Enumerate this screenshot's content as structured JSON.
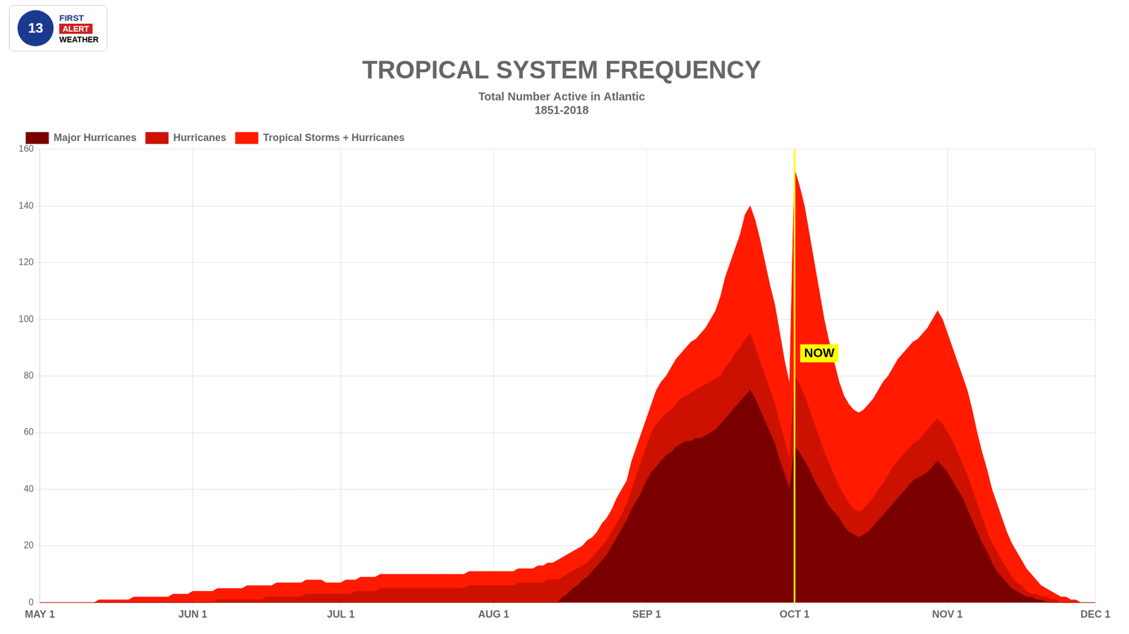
{
  "chart_data": {
    "type": "area",
    "title": "TROPICAL SYSTEM FREQUENCY",
    "subtitle": [
      "Total Number Active in Atlantic",
      "1851-2018"
    ],
    "x": [
      0,
      1,
      2,
      3,
      4,
      5,
      6,
      7,
      8,
      9,
      10,
      11,
      12,
      13,
      14,
      15,
      16,
      17,
      18,
      19,
      20,
      21,
      22,
      23,
      24,
      25,
      26,
      27,
      28,
      29,
      30,
      31,
      32,
      33,
      34,
      35,
      36,
      37,
      38,
      39,
      40,
      41,
      42,
      43,
      44,
      45,
      46,
      47,
      48,
      49,
      50,
      51,
      52,
      53,
      54,
      55,
      56,
      57,
      58,
      59,
      60,
      61,
      62,
      63,
      64,
      65,
      66,
      67,
      68,
      69,
      70,
      71,
      72,
      73,
      74,
      75,
      76,
      77,
      78,
      79,
      80,
      81,
      82,
      83,
      84,
      85,
      86,
      87,
      88,
      89,
      90,
      91,
      92,
      93,
      94,
      95,
      96,
      97,
      98,
      99,
      100,
      101,
      102,
      103,
      104,
      105,
      106,
      107,
      108,
      109,
      110,
      111,
      112,
      113,
      114,
      115,
      116,
      117,
      118,
      119,
      120,
      121,
      122,
      123,
      124,
      125,
      126,
      127,
      128,
      129,
      130,
      131,
      132,
      133,
      134,
      135,
      136,
      137,
      138,
      139,
      140,
      141,
      142,
      143,
      144,
      145,
      146,
      147,
      148,
      149,
      150,
      151,
      152,
      153,
      154,
      155,
      156,
      157,
      158,
      159,
      160,
      161,
      162,
      163,
      164,
      165,
      166,
      167,
      168,
      169,
      170,
      171,
      172,
      173,
      174,
      175,
      176,
      177,
      178,
      179,
      180,
      181,
      182,
      183,
      184,
      185,
      186,
      187,
      188,
      189,
      190,
      191,
      192,
      193,
      194,
      195,
      196,
      197,
      198,
      199,
      200,
      201,
      202,
      203,
      204,
      205,
      206,
      207,
      208,
      209,
      210,
      211,
      212,
      213,
      214
    ],
    "xlim": [
      0,
      214
    ],
    "xticks": [
      {
        "value": 0,
        "label": "MAY 1"
      },
      {
        "value": 31,
        "label": "JUN 1"
      },
      {
        "value": 61,
        "label": "JUL 1"
      },
      {
        "value": 92,
        "label": "AUG 1"
      },
      {
        "value": 123,
        "label": "SEP 1"
      },
      {
        "value": 153,
        "label": "OCT 1"
      },
      {
        "value": 184,
        "label": "NOV 1"
      },
      {
        "value": 214,
        "label": "DEC 1"
      }
    ],
    "ylim": [
      0,
      160
    ],
    "yticks": [
      0,
      20,
      40,
      60,
      80,
      100,
      120,
      140,
      160
    ],
    "series": [
      {
        "name": "Tropical Storms + Hurricanes",
        "color": "#ff1a00",
        "values": [
          0,
          0,
          0,
          0,
          0,
          0,
          0,
          0,
          0,
          0,
          0,
          0,
          1,
          1,
          1,
          1,
          1,
          1,
          1,
          2,
          2,
          2,
          2,
          2,
          2,
          2,
          2,
          3,
          3,
          3,
          3,
          4,
          4,
          4,
          4,
          4,
          5,
          5,
          5,
          5,
          5,
          5,
          6,
          6,
          6,
          6,
          6,
          6,
          7,
          7,
          7,
          7,
          7,
          7,
          8,
          8,
          8,
          8,
          7,
          7,
          7,
          7,
          8,
          8,
          8,
          9,
          9,
          9,
          9,
          10,
          10,
          10,
          10,
          10,
          10,
          10,
          10,
          10,
          10,
          10,
          10,
          10,
          10,
          10,
          10,
          10,
          10,
          11,
          11,
          11,
          11,
          11,
          11,
          11,
          11,
          11,
          11,
          12,
          12,
          12,
          12,
          13,
          13,
          14,
          14,
          15,
          16,
          17,
          18,
          19,
          20,
          22,
          23,
          25,
          28,
          30,
          33,
          37,
          40,
          43,
          50,
          55,
          60,
          65,
          70,
          75,
          78,
          80,
          83,
          86,
          88,
          90,
          92,
          93,
          95,
          97,
          100,
          103,
          108,
          115,
          120,
          125,
          130,
          137,
          140,
          135,
          128,
          120,
          112,
          105,
          95,
          85,
          77,
          153,
          147,
          140,
          130,
          120,
          110,
          100,
          92,
          85,
          78,
          73,
          70,
          68,
          67,
          68,
          70,
          72,
          75,
          78,
          80,
          83,
          86,
          88,
          90,
          92,
          93,
          95,
          97,
          100,
          103,
          100,
          95,
          90,
          85,
          80,
          75,
          68,
          60,
          53,
          47,
          40,
          35,
          30,
          25,
          21,
          18,
          15,
          12,
          10,
          8,
          6,
          5,
          4,
          3,
          2,
          2,
          1,
          1,
          0,
          0,
          0,
          0
        ]
      },
      {
        "name": "Hurricanes",
        "color": "#cc1100",
        "values": [
          0,
          0,
          0,
          0,
          0,
          0,
          0,
          0,
          0,
          0,
          0,
          0,
          0,
          0,
          0,
          0,
          0,
          0,
          0,
          0,
          0,
          0,
          0,
          0,
          0,
          0,
          0,
          0,
          0,
          0,
          0,
          0,
          0,
          0,
          0,
          0,
          1,
          1,
          1,
          1,
          1,
          1,
          1,
          1,
          1,
          1,
          2,
          2,
          2,
          2,
          2,
          2,
          2,
          2,
          3,
          3,
          3,
          3,
          3,
          3,
          3,
          3,
          3,
          3,
          4,
          4,
          4,
          4,
          4,
          5,
          5,
          5,
          5,
          5,
          5,
          5,
          5,
          5,
          5,
          5,
          5,
          5,
          5,
          5,
          5,
          5,
          5,
          6,
          6,
          6,
          6,
          6,
          6,
          6,
          6,
          6,
          6,
          7,
          7,
          7,
          7,
          7,
          7,
          8,
          8,
          8,
          9,
          10,
          11,
          12,
          13,
          14,
          16,
          18,
          20,
          22,
          25,
          28,
          31,
          35,
          40,
          45,
          50,
          55,
          60,
          63,
          65,
          67,
          68,
          70,
          72,
          73,
          74,
          75,
          76,
          77,
          78,
          79,
          80,
          83,
          85,
          88,
          90,
          93,
          95,
          90,
          85,
          80,
          75,
          70,
          63,
          57,
          50,
          80,
          77,
          73,
          68,
          63,
          58,
          53,
          49,
          45,
          41,
          38,
          35,
          33,
          32,
          33,
          35,
          37,
          40,
          42,
          45,
          48,
          50,
          52,
          54,
          56,
          57,
          59,
          61,
          63,
          65,
          63,
          60,
          57,
          53,
          49,
          45,
          40,
          35,
          30,
          25,
          21,
          18,
          15,
          12,
          9,
          7,
          6,
          4,
          3,
          3,
          2,
          2,
          1,
          1,
          0,
          0,
          0,
          0,
          0,
          0,
          0,
          0
        ]
      },
      {
        "name": "Major Hurricanes",
        "color": "#7a0000",
        "values": [
          0,
          0,
          0,
          0,
          0,
          0,
          0,
          0,
          0,
          0,
          0,
          0,
          0,
          0,
          0,
          0,
          0,
          0,
          0,
          0,
          0,
          0,
          0,
          0,
          0,
          0,
          0,
          0,
          0,
          0,
          0,
          0,
          0,
          0,
          0,
          0,
          0,
          0,
          0,
          0,
          0,
          0,
          0,
          0,
          0,
          0,
          0,
          0,
          0,
          0,
          0,
          0,
          0,
          0,
          0,
          0,
          0,
          0,
          0,
          0,
          0,
          0,
          0,
          0,
          0,
          0,
          0,
          0,
          0,
          0,
          0,
          0,
          0,
          0,
          0,
          0,
          0,
          0,
          0,
          0,
          0,
          0,
          0,
          0,
          0,
          0,
          0,
          0,
          0,
          0,
          0,
          0,
          0,
          0,
          0,
          0,
          0,
          0,
          0,
          0,
          0,
          0,
          0,
          0,
          0,
          0,
          2,
          3,
          5,
          6,
          8,
          9,
          11,
          13,
          15,
          17,
          20,
          23,
          26,
          29,
          33,
          36,
          39,
          43,
          46,
          48,
          50,
          52,
          53,
          55,
          56,
          57,
          57,
          58,
          58,
          59,
          60,
          61,
          63,
          65,
          67,
          69,
          71,
          73,
          75,
          72,
          68,
          64,
          60,
          56,
          50,
          45,
          40,
          55,
          53,
          50,
          47,
          43,
          40,
          37,
          34,
          32,
          30,
          27,
          25,
          24,
          23,
          24,
          25,
          27,
          29,
          31,
          33,
          35,
          37,
          39,
          41,
          43,
          44,
          45,
          46,
          48,
          50,
          48,
          46,
          43,
          40,
          37,
          33,
          29,
          25,
          21,
          18,
          14,
          11,
          9,
          7,
          5,
          4,
          3,
          2,
          2,
          1,
          1,
          0,
          0,
          0,
          0,
          0,
          0,
          0,
          0,
          0,
          0,
          0
        ]
      }
    ],
    "grid": true,
    "legend": "upper left",
    "annotations": [
      {
        "text": "NOW",
        "x": 153,
        "y": 88,
        "color": "#ffff00"
      },
      {
        "text": "13"
      },
      {
        "text": "FIRST"
      },
      {
        "text": "ALERT"
      },
      {
        "text": "WEATHER"
      }
    ]
  }
}
